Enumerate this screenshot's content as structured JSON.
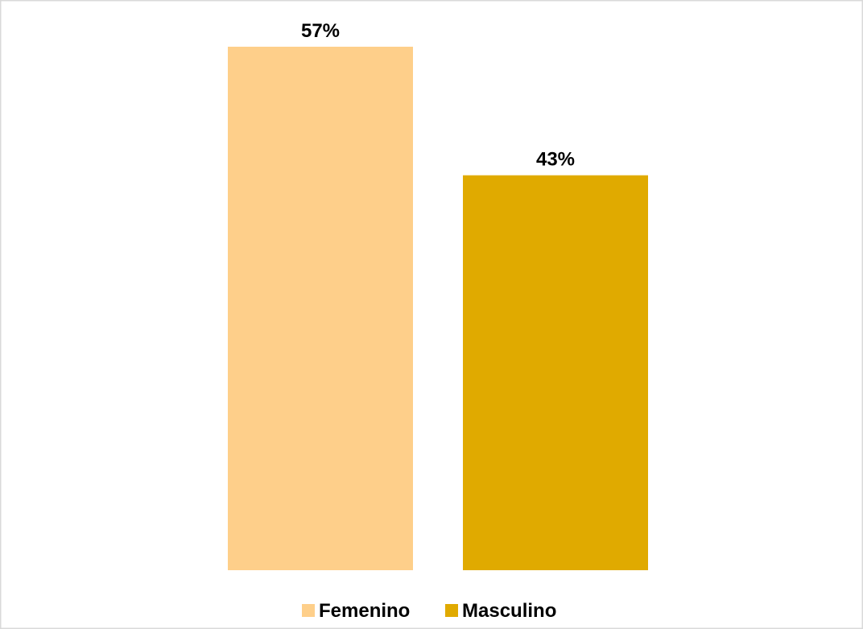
{
  "chart_data": {
    "type": "bar",
    "categories": [
      "Femenino",
      "Masculino"
    ],
    "values": [
      57,
      43
    ],
    "data_labels": [
      "57%",
      "43%"
    ],
    "colors": [
      "#FECF8A",
      "#E0AA00"
    ],
    "ylim": [
      0,
      57
    ],
    "title": "",
    "xlabel": "",
    "ylabel": "",
    "grid": false,
    "axes_visible": false,
    "legend": {
      "position": "bottom",
      "entries": [
        "Femenino",
        "Masculino"
      ]
    }
  }
}
